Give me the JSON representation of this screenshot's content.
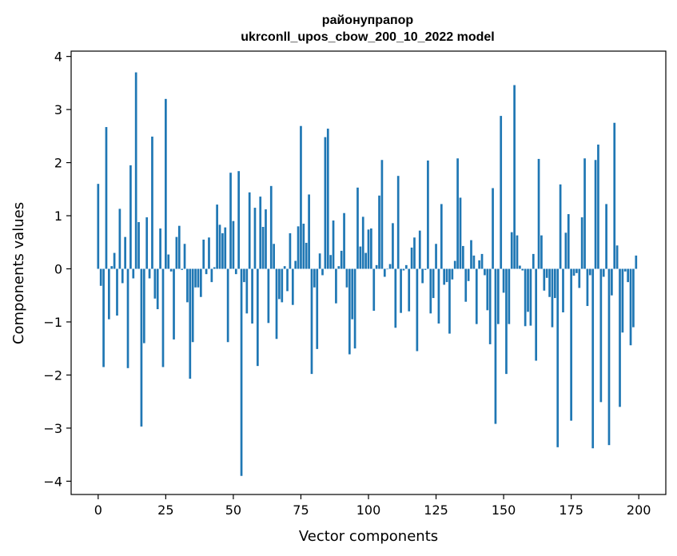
{
  "chart_data": {
    "type": "bar",
    "title_lines": [
      "районупрапор",
      "ukrconll_upos_cbow_200_10_2022 model"
    ],
    "xlabel": "Vector components",
    "ylabel": "Components values",
    "xlim": [
      -10,
      210
    ],
    "ylim": [
      -4.25,
      4.1
    ],
    "xticks": [
      0,
      25,
      50,
      75,
      100,
      125,
      150,
      175,
      200
    ],
    "yticks": [
      -4,
      -3,
      -2,
      -1,
      0,
      1,
      2,
      3,
      4
    ],
    "xtick_labels": [
      "0",
      "25",
      "50",
      "75",
      "100",
      "125",
      "150",
      "175",
      "200"
    ],
    "ytick_labels": [
      "−4",
      "−3",
      "−2",
      "−1",
      "0",
      "1",
      "2",
      "3",
      "4"
    ],
    "grid": false,
    "bar_color": "#1f77b4",
    "x": [
      0,
      1,
      2,
      3,
      4,
      5,
      6,
      7,
      8,
      9,
      10,
      11,
      12,
      13,
      14,
      15,
      16,
      17,
      18,
      19,
      20,
      21,
      22,
      23,
      24,
      25,
      26,
      27,
      28,
      29,
      30,
      31,
      32,
      33,
      34,
      35,
      36,
      37,
      38,
      39,
      40,
      41,
      42,
      43,
      44,
      45,
      46,
      47,
      48,
      49,
      50,
      51,
      52,
      53,
      54,
      55,
      56,
      57,
      58,
      59,
      60,
      61,
      62,
      63,
      64,
      65,
      66,
      67,
      68,
      69,
      70,
      71,
      72,
      73,
      74,
      75,
      76,
      77,
      78,
      79,
      80,
      81,
      82,
      83,
      84,
      85,
      86,
      87,
      88,
      89,
      90,
      91,
      92,
      93,
      94,
      95,
      96,
      97,
      98,
      99,
      100,
      101,
      102,
      103,
      104,
      105,
      106,
      107,
      108,
      109,
      110,
      111,
      112,
      113,
      114,
      115,
      116,
      117,
      118,
      119,
      120,
      121,
      122,
      123,
      124,
      125,
      126,
      127,
      128,
      129,
      130,
      131,
      132,
      133,
      134,
      135,
      136,
      137,
      138,
      139,
      140,
      141,
      142,
      143,
      144,
      145,
      146,
      147,
      148,
      149,
      150,
      151,
      152,
      153,
      154,
      155,
      156,
      157,
      158,
      159,
      160,
      161,
      162,
      163,
      164,
      165,
      166,
      167,
      168,
      169,
      170,
      171,
      172,
      173,
      174,
      175,
      176,
      177,
      178,
      179,
      180,
      181,
      182,
      183,
      184,
      185,
      186,
      187,
      188,
      189,
      190,
      191,
      192,
      193,
      194,
      195,
      196,
      197,
      198,
      199
    ],
    "values": [
      1.6,
      -0.32,
      -1.85,
      2.67,
      -0.95,
      0.05,
      0.3,
      -0.88,
      1.13,
      -0.27,
      0.6,
      -1.87,
      1.95,
      -0.18,
      3.7,
      0.88,
      -2.97,
      -1.4,
      0.97,
      -0.18,
      2.49,
      -0.56,
      -0.76,
      0.76,
      -1.85,
      3.2,
      0.27,
      -0.05,
      -1.33,
      0.6,
      0.81,
      -0.02,
      0.47,
      -0.63,
      -2.07,
      -1.38,
      -0.35,
      -0.35,
      -0.53,
      0.55,
      -0.1,
      0.59,
      -0.25,
      0.03,
      1.21,
      0.83,
      0.67,
      0.78,
      -1.38,
      1.81,
      0.9,
      -0.1,
      1.84,
      -3.9,
      -0.25,
      -0.84,
      1.44,
      -1.03,
      1.15,
      -1.83,
      1.36,
      0.79,
      1.12,
      -1.02,
      1.56,
      0.47,
      -1.32,
      -0.57,
      -0.63,
      0.05,
      -0.42,
      0.67,
      -0.68,
      0.15,
      0.8,
      2.69,
      0.85,
      0.49,
      1.4,
      -1.98,
      -0.35,
      -1.51,
      0.29,
      -0.12,
      2.48,
      2.64,
      0.26,
      0.91,
      -0.65,
      0.05,
      0.34,
      1.05,
      -0.35,
      -1.61,
      -0.95,
      -1.5,
      1.53,
      0.42,
      0.98,
      0.3,
      0.74,
      0.76,
      -0.79,
      0.07,
      1.38,
      2.05,
      -0.15,
      0.0,
      0.09,
      0.86,
      -1.11,
      1.75,
      -0.83,
      -0.03,
      0.07,
      -0.8,
      0.4,
      0.59,
      -1.55,
      0.72,
      -0.27,
      -0.02,
      2.04,
      -0.84,
      -0.55,
      0.47,
      -1.03,
      1.22,
      -0.3,
      -0.25,
      -1.22,
      -0.2,
      0.15,
      2.08,
      1.34,
      0.43,
      -0.62,
      -0.23,
      0.54,
      0.25,
      -1.04,
      0.16,
      0.28,
      -0.12,
      -0.78,
      -1.42,
      1.52,
      -2.92,
      -1.04,
      2.88,
      -0.45,
      -1.98,
      -1.04,
      0.69,
      3.46,
      0.63,
      0.06,
      -0.03,
      -1.08,
      -0.81,
      -1.07,
      0.28,
      -1.73,
      2.07,
      0.63,
      -0.41,
      -0.17,
      -0.53,
      -1.1,
      -0.55,
      -3.36,
      1.59,
      -0.82,
      0.68,
      1.03,
      -2.86,
      -0.13,
      -0.08,
      -0.36,
      0.97,
      2.08,
      -0.7,
      -0.12,
      -3.38,
      2.05,
      2.34,
      -2.51,
      -0.15,
      1.22,
      -3.32,
      -0.5,
      2.75,
      0.44,
      -2.6,
      -1.2,
      -0.05,
      -0.25,
      -1.44,
      -1.1,
      0.25
    ]
  }
}
